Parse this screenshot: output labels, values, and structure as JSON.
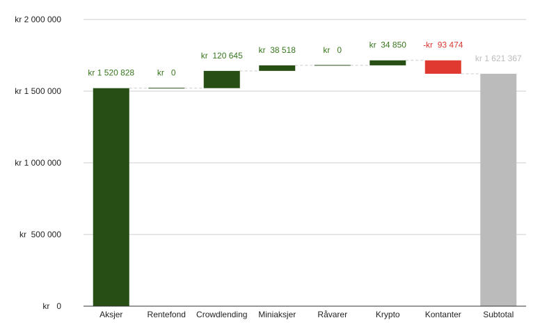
{
  "chart_data": {
    "type": "bar",
    "subtype": "waterfall",
    "categories": [
      "Aksjer",
      "Rentefond",
      "Crowdlending",
      "Miniaksjer",
      "Råvarer",
      "Krypto",
      "Kontanter",
      "Subtotal"
    ],
    "values": [
      1520828,
      0,
      120645,
      38518,
      0,
      34850,
      -93474,
      1621367
    ],
    "value_labels": [
      "kr 1 520 828",
      "kr   0",
      "kr  120 645",
      "kr  38 518",
      "kr   0",
      "kr  34 850",
      "-kr  93 474",
      "kr 1 621 367"
    ],
    "kinds": [
      "increase",
      "increase",
      "increase",
      "increase",
      "increase",
      "increase",
      "decrease",
      "total"
    ],
    "ylim": [
      0,
      2000000
    ],
    "yticks": [
      0,
      500000,
      1000000,
      1500000,
      2000000
    ],
    "ytick_labels": [
      "kr   0",
      "kr  500 000",
      "kr 1 000 000",
      "kr 1 500 000",
      "kr 2 000 000"
    ],
    "title": "",
    "xlabel": "",
    "ylabel": "",
    "grid": true,
    "legend": "none",
    "colors": {
      "increase": "#274e13",
      "decrease": "#e0392f",
      "total": "#bbbbbb",
      "increase_label": "#38761d",
      "decrease_label": "#d9382f",
      "total_label": "#bbbbbb"
    }
  }
}
